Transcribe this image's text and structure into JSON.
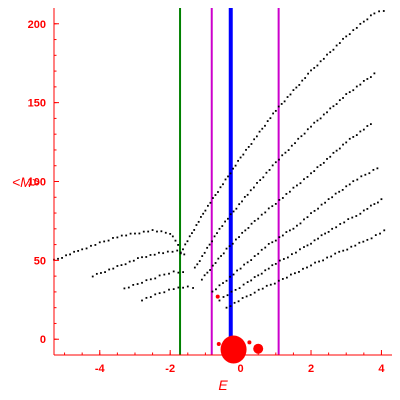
{
  "chart_data": {
    "type": "scatter",
    "title": "",
    "xlabel": "E",
    "ylabel": "<M>",
    "xlim": [
      -5.3,
      4.3
    ],
    "ylim": [
      -10,
      210
    ],
    "x_ticks": [
      -4,
      -2,
      0,
      2,
      4
    ],
    "y_ticks": [
      0,
      50,
      100,
      150,
      200
    ],
    "x_tick_labels": [
      "-4",
      "-2",
      "0",
      "2",
      "4"
    ],
    "y_tick_labels": [
      "0",
      "50",
      "100",
      "150",
      "200"
    ],
    "grid": false,
    "colors": {
      "axes": "#ff0000",
      "points": "#000000",
      "highlight": "#ff0000"
    },
    "vertical_lines": [
      {
        "x": -1.72,
        "color": "#008000",
        "style": "thin"
      },
      {
        "x": -0.82,
        "color": "#cc00cc",
        "style": "thin"
      },
      {
        "x": -0.28,
        "color": "#0000ff",
        "style": "thick"
      },
      {
        "x": 1.08,
        "color": "#cc00cc",
        "style": "thin"
      }
    ],
    "branches": [
      {
        "x": [
          -5.3,
          -4.5,
          -3.5,
          -2.5,
          -2.0,
          -1.7
        ],
        "y": [
          50,
          57,
          65,
          69,
          67,
          58
        ]
      },
      {
        "x": [
          -4.2,
          -3.5,
          -2.8,
          -2.2,
          -1.8,
          -1.5
        ],
        "y": [
          40,
          46,
          52,
          55,
          56,
          52
        ]
      },
      {
        "x": [
          -3.3,
          -2.8,
          -2.3,
          -1.9,
          -1.5
        ],
        "y": [
          32,
          36,
          40,
          43,
          42
        ]
      },
      {
        "x": [
          -2.8,
          -2.3,
          -1.9,
          -1.5,
          -1.2
        ],
        "y": [
          25,
          29,
          32,
          33,
          32
        ]
      },
      {
        "x": [
          -1.7,
          -1.0,
          0.0,
          1.0,
          2.0,
          3.0,
          3.8,
          4.2
        ],
        "y": [
          55,
          82,
          115,
          145,
          170,
          192,
          207,
          209
        ]
      },
      {
        "x": [
          -1.3,
          -0.6,
          0.2,
          1.0,
          2.0,
          3.0,
          3.9
        ],
        "y": [
          45,
          70,
          92,
          112,
          135,
          155,
          170
        ]
      },
      {
        "x": [
          -1.1,
          -0.4,
          0.4,
          1.2,
          2.0,
          3.0,
          3.8
        ],
        "y": [
          38,
          57,
          75,
          90,
          105,
          125,
          138
        ]
      },
      {
        "x": [
          -0.8,
          0.0,
          0.8,
          1.6,
          2.4,
          3.2,
          4.0
        ],
        "y": [
          30,
          45,
          60,
          72,
          87,
          100,
          110
        ]
      },
      {
        "x": [
          -0.6,
          0.2,
          1.0,
          1.8,
          2.6,
          3.4,
          4.1
        ],
        "y": [
          25,
          36,
          48,
          58,
          70,
          80,
          90
        ]
      },
      {
        "x": [
          -0.4,
          0.4,
          1.2,
          2.0,
          2.8,
          3.6,
          4.2
        ],
        "y": [
          20,
          30,
          38,
          47,
          55,
          63,
          70
        ]
      }
    ],
    "highlight_points": [
      {
        "x": -0.2,
        "y": -4,
        "size": "large"
      },
      {
        "x": 0.5,
        "y": -6,
        "size": "medium"
      },
      {
        "x": -0.65,
        "y": 27,
        "size": "small"
      },
      {
        "x": -0.62,
        "y": -3,
        "size": "small"
      },
      {
        "x": 0.25,
        "y": -2,
        "size": "small"
      }
    ]
  }
}
